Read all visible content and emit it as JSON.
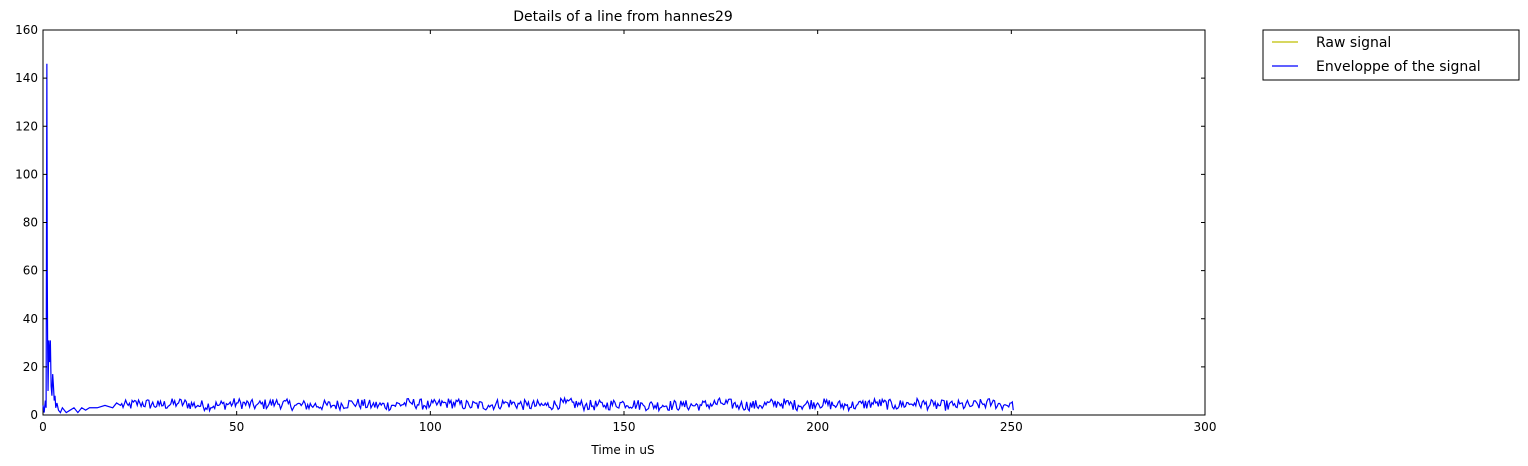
{
  "chart_data": {
    "type": "line",
    "title": "Details of a line from hannes29",
    "xlabel": "Time in uS",
    "ylabel": "",
    "xlim": [
      0,
      300
    ],
    "ylim": [
      0,
      160
    ],
    "x_ticks": [
      0,
      50,
      100,
      150,
      200,
      250,
      300
    ],
    "y_ticks": [
      0,
      20,
      40,
      60,
      80,
      100,
      120,
      140,
      160
    ],
    "grid": false,
    "legend_position": "outside-top-right",
    "series": [
      {
        "name": "Raw signal",
        "color": "#bfbf00",
        "x": [],
        "y": []
      },
      {
        "name": "Enveloppe of the signal",
        "color": "#0000ff",
        "x": [
          0,
          0.3,
          0.6,
          0.8,
          1.0,
          1.1,
          1.2,
          1.3,
          1.5,
          1.7,
          1.9,
          2.1,
          2.3,
          2.5,
          2.7,
          2.9,
          3.1,
          3.3,
          3.6,
          4.0,
          4.5,
          5,
          6,
          7,
          8,
          9,
          10,
          11,
          12,
          14,
          16,
          18,
          19,
          20,
          22,
          25,
          30,
          35,
          40,
          45,
          50,
          55,
          60,
          65,
          70,
          75,
          80,
          85,
          90,
          95,
          100,
          105,
          110,
          115,
          120,
          125,
          130,
          135,
          140,
          145,
          150,
          155,
          160,
          165,
          170,
          175,
          180,
          185,
          190,
          195,
          200,
          205,
          210,
          215,
          220,
          225,
          230,
          235,
          240,
          245,
          248,
          250,
          250.5
        ],
        "y": [
          4,
          1,
          6,
          3,
          146,
          60,
          28,
          10,
          31,
          22,
          31,
          12,
          8,
          17,
          12,
          6,
          8,
          3,
          5,
          2,
          1,
          3,
          1,
          2,
          3,
          1,
          3,
          2,
          3,
          3,
          4,
          3,
          5,
          4,
          4,
          5,
          4,
          5,
          4,
          4,
          5,
          4,
          5,
          4,
          4,
          4,
          5,
          4,
          4,
          5,
          4,
          5,
          4,
          4,
          5,
          4,
          4,
          5,
          4,
          4,
          5,
          4,
          4,
          4,
          4,
          5,
          4,
          4,
          5,
          4,
          5,
          4,
          4,
          5,
          4,
          5,
          4,
          4,
          4,
          5,
          4,
          5,
          2
        ]
      }
    ]
  }
}
